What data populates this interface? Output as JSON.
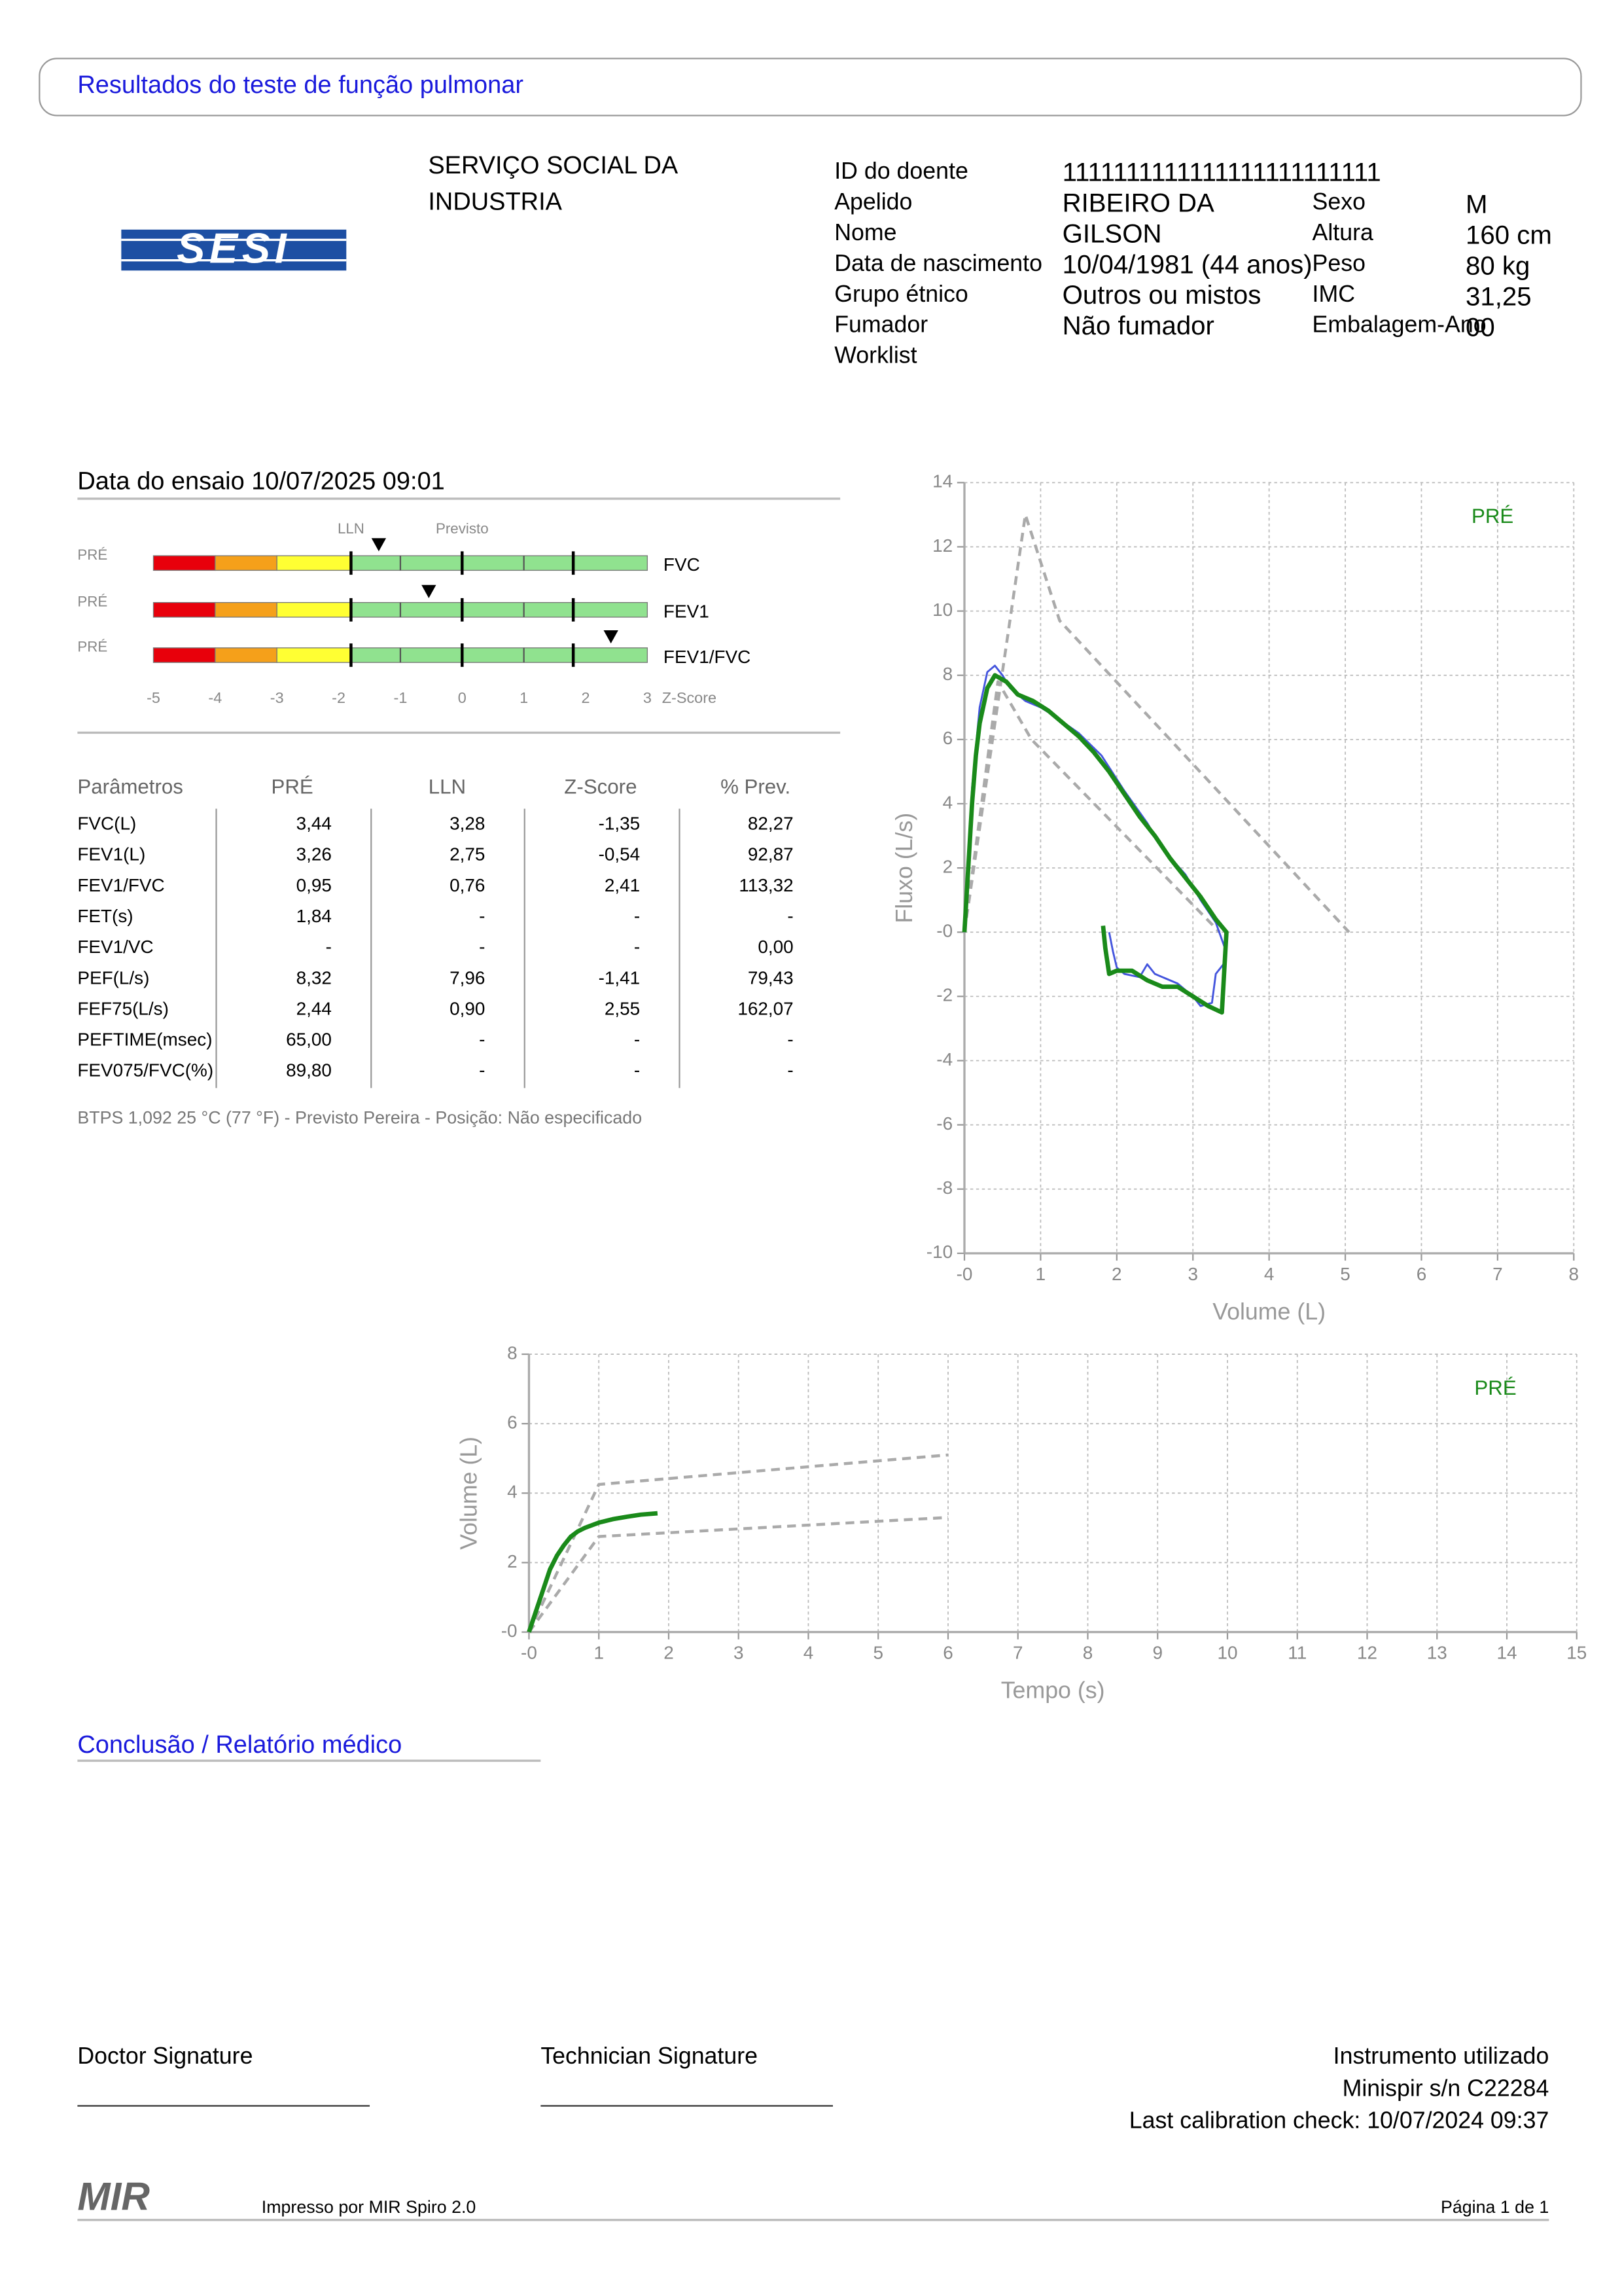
{
  "header": {
    "title": "Resultados do teste de função pulmonar"
  },
  "organization": {
    "logo": "SESI",
    "name_lines": [
      "SERVIÇO SOCIAL DA",
      "INDUSTRIA"
    ]
  },
  "patient": {
    "left": [
      {
        "label": "ID do doente",
        "value": "1111111111111111111111111"
      },
      {
        "label": "Apelido",
        "value": "RIBEIRO DA"
      },
      {
        "label": "Nome",
        "value": "GILSON"
      },
      {
        "label": "Data de nascimento",
        "value": "10/04/1981 (44 anos)"
      },
      {
        "label": "Grupo étnico",
        "value": "Outros ou mistos"
      },
      {
        "label": "Fumador",
        "value": "Não fumador"
      },
      {
        "label": "Worklist"
      }
    ],
    "right": [
      {
        "label": "Sexo",
        "value": "M"
      },
      {
        "label": "Altura",
        "value": "160 cm"
      },
      {
        "label": "Peso",
        "value": "80 kg"
      },
      {
        "label": "IMC",
        "value": "31,25"
      },
      {
        "label": "Embalagem-Ano",
        "value": "00"
      }
    ]
  },
  "test_date": "Data do ensaio 10/07/2025 09:01",
  "table": {
    "header": [
      "Parâmetros",
      "PRÉ",
      "LLN",
      "Z-Score",
      "% Prev."
    ],
    "rows": [
      [
        "FVC(L)",
        "3,44",
        "3,28",
        "-1,35",
        "82,27"
      ],
      [
        "FEV1(L)",
        "3,26",
        "2,75",
        "-0,54",
        "92,87"
      ],
      [
        "FEV1/FVC",
        "0,95",
        "0,76",
        "2,41",
        "113,32"
      ],
      [
        "FET(s)",
        "1,84",
        "-",
        "-",
        "-"
      ],
      [
        "FEV1/VC",
        "-",
        "-",
        "-",
        "0,00"
      ],
      [
        "PEF(L/s)",
        "8,32",
        "7,96",
        "-1,41",
        "79,43"
      ],
      [
        "FEF75(L/s)",
        "2,44",
        "0,90",
        "2,55",
        "162,07"
      ],
      [
        "PEFTIME(msec)",
        "65,00",
        "-",
        "-",
        "-"
      ],
      [
        "FEV075/FVC(%)",
        "89,80",
        "-",
        "-",
        "-"
      ]
    ]
  },
  "note": "BTPS 1,092 25 °C (77 °F) - Previsto Pereira - Posição: Não especificado",
  "chart_data": [
    {
      "type": "bullet",
      "categories": [
        "FVC",
        "FEV1",
        "FEV1/FVC"
      ],
      "row_labels": [
        "PRÉ",
        "PRÉ",
        "PRÉ"
      ],
      "values": [
        -1.35,
        -0.54,
        2.41
      ],
      "marker_color": "#000000",
      "xlim": [
        -5,
        3
      ],
      "xticks": [
        -5,
        -4,
        -3,
        -2,
        -1,
        0,
        1,
        2,
        3
      ],
      "xlabel": "Z-Score",
      "zones": [
        {
          "from": -5,
          "to": -4,
          "color": "#e8000b"
        },
        {
          "from": -4,
          "to": -3,
          "color": "#f5a01a"
        },
        {
          "from": -3,
          "to": -1.8,
          "color": "#ffff33"
        },
        {
          "from": -1.8,
          "to": 3,
          "color": "#90e28f"
        }
      ],
      "reference_lines": [
        {
          "value": -1.8,
          "label": "LLN"
        },
        {
          "value": 0,
          "label": "Previsto"
        },
        {
          "value": 1.8
        }
      ],
      "minor_lines": [
        -1,
        1
      ]
    },
    {
      "type": "line",
      "xlabel": "Volume (L)",
      "ylabel": "Fluxo (L/s)",
      "grid": true,
      "legend": "top-right",
      "xlim": [
        0,
        8
      ],
      "xticks": [
        {
          "value": 0,
          "label": "-0"
        },
        1,
        2,
        3,
        4,
        5,
        6,
        7,
        8
      ],
      "ylim": [
        -10,
        14
      ],
      "yticks": [
        -10,
        -8,
        -6,
        -4,
        -2,
        {
          "value": 0,
          "label": "-0"
        },
        2,
        4,
        6,
        8,
        10,
        12,
        14
      ],
      "series": [
        {
          "color": "#aaaaaa",
          "dashed": true,
          "x": [
            0,
            0.8,
            1.25,
            5.05
          ],
          "values": [
            0,
            13,
            9.7,
            0
          ]
        },
        {
          "color": "#aaaaaa",
          "dashed": true,
          "x": [
            0,
            0.44,
            0.88,
            3.35
          ],
          "values": [
            0,
            7.8,
            6,
            0
          ]
        },
        {
          "color": "#4455dd",
          "x": [
            0,
            0.1,
            0.2,
            0.3,
            0.4,
            0.5,
            0.6,
            0.8,
            1.0,
            1.2,
            1.5,
            1.8,
            2.1,
            2.4,
            2.6,
            2.9,
            3.1,
            3.3,
            3.42,
            3.4,
            3.3,
            3.25,
            3.1,
            3.0,
            2.8,
            2.6,
            2.5,
            2.4,
            2.3,
            2.1,
            2.0,
            1.95,
            1.9
          ],
          "values": [
            0,
            4.5,
            7,
            8.1,
            8.3,
            8.0,
            7.6,
            7.2,
            7.0,
            6.7,
            6.2,
            5.5,
            4.4,
            3.4,
            2.6,
            1.8,
            1.0,
            0.3,
            -0.5,
            -1.0,
            -1.3,
            -2.2,
            -2.3,
            -2.0,
            -1.6,
            -1.4,
            -1.3,
            -1.0,
            -1.4,
            -1.3,
            -1.1,
            -0.6,
            0.0
          ]
        },
        {
          "name": "PRÉ",
          "color": "#1a8a1a",
          "line_width": 3,
          "x": [
            0,
            0.05,
            0.1,
            0.15,
            0.2,
            0.3,
            0.4,
            0.55,
            0.7,
            0.9,
            1.1,
            1.3,
            1.5,
            1.7,
            1.9,
            2.1,
            2.3,
            2.5,
            2.7,
            2.9,
            3.1,
            3.3,
            3.44,
            3.38,
            3.2,
            3.0,
            2.8,
            2.6,
            2.4,
            2.2,
            2.0,
            1.9,
            1.85,
            1.82
          ],
          "values": [
            0,
            2,
            4,
            5.5,
            6.5,
            7.6,
            8.0,
            7.8,
            7.4,
            7.2,
            6.9,
            6.5,
            6.1,
            5.6,
            5.0,
            4.3,
            3.6,
            3.0,
            2.3,
            1.7,
            1.1,
            0.4,
            0,
            -2.5,
            -2.3,
            -2.0,
            -1.7,
            -1.7,
            -1.5,
            -1.2,
            -1.2,
            -1.3,
            -0.5,
            0.2
          ]
        }
      ]
    },
    {
      "type": "line",
      "xlabel": "Tempo (s)",
      "ylabel": "Volume (L)",
      "grid": true,
      "legend": "top-right",
      "xlim": [
        0,
        15
      ],
      "xticks": [
        {
          "value": 0,
          "label": "-0"
        },
        1,
        2,
        3,
        4,
        5,
        6,
        7,
        8,
        9,
        10,
        11,
        12,
        13,
        14,
        15
      ],
      "ylim": [
        0,
        8
      ],
      "yticks": [
        {
          "value": 0,
          "label": "-0"
        },
        2,
        4,
        6,
        8
      ],
      "series": [
        {
          "color": "#aaaaaa",
          "dashed": true,
          "x": [
            0,
            1,
            6
          ],
          "values": [
            0,
            4.25,
            5.1
          ]
        },
        {
          "color": "#aaaaaa",
          "dashed": true,
          "x": [
            0,
            1,
            6
          ],
          "values": [
            0,
            2.75,
            3.3
          ]
        },
        {
          "name": "PRÉ",
          "color": "#1a8a1a",
          "line_width": 3,
          "x": [
            0,
            0.1,
            0.2,
            0.3,
            0.4,
            0.5,
            0.6,
            0.7,
            0.8,
            1.0,
            1.2,
            1.4,
            1.6,
            1.84
          ],
          "values": [
            0,
            0.6,
            1.2,
            1.8,
            2.2,
            2.5,
            2.75,
            2.9,
            3.0,
            3.15,
            3.25,
            3.32,
            3.38,
            3.42
          ]
        }
      ]
    }
  ],
  "conclusion": {
    "title": "Conclusão / Relatório médico"
  },
  "signatures": [
    "Doctor Signature",
    "Technician Signature"
  ],
  "instrument": [
    "Instrumento utilizado",
    "Minispir s/n C22284",
    "Last calibration check: 10/07/2024 09:37"
  ],
  "footer": {
    "brand": "MIR",
    "printed_by": "Impresso por MIR Spiro 2.0",
    "page": "Página 1 de 1"
  }
}
